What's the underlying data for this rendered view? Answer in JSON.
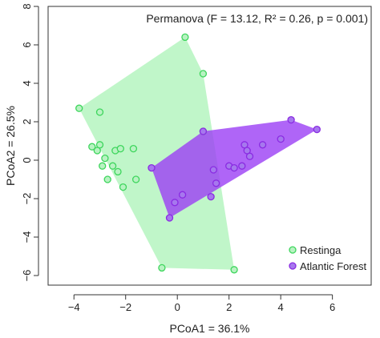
{
  "chart_data": {
    "type": "scatter",
    "title": "",
    "annotation": "Permanova (F = 13.12, R² = 0.26, p = 0.001)",
    "xlabel": "PCoA1 = 36.1%",
    "ylabel": "PCoA2 = 26.5%",
    "xlim": [
      -5.0,
      7.5
    ],
    "ylim": [
      -6.5,
      8.0
    ],
    "xticks": [
      -4,
      -2,
      0,
      2,
      4,
      6
    ],
    "yticks": [
      -6,
      -4,
      -2,
      0,
      2,
      4,
      6,
      8
    ],
    "grid": false,
    "legend_position": "bottom-right",
    "series": [
      {
        "name": "Restinga",
        "color": "#3dd65c",
        "hull_fill": "#bdf5c6",
        "points": [
          [
            -3.8,
            2.7
          ],
          [
            -3.0,
            2.5
          ],
          [
            -3.3,
            0.7
          ],
          [
            -3.0,
            0.8
          ],
          [
            -3.1,
            0.5
          ],
          [
            -2.8,
            0.1
          ],
          [
            -2.9,
            -0.3
          ],
          [
            -2.4,
            0.5
          ],
          [
            -2.2,
            0.6
          ],
          [
            -1.7,
            0.6
          ],
          [
            -2.5,
            -0.3
          ],
          [
            -2.3,
            -0.6
          ],
          [
            -2.7,
            -1.0
          ],
          [
            -2.1,
            -1.4
          ],
          [
            -1.6,
            -1.0
          ],
          [
            0.3,
            6.4
          ],
          [
            1.0,
            4.5
          ],
          [
            -0.6,
            -5.6
          ],
          [
            2.2,
            -5.7
          ],
          [
            1.0,
            1.5
          ]
        ],
        "hull": [
          [
            -3.8,
            2.7
          ],
          [
            0.3,
            6.4
          ],
          [
            1.0,
            4.5
          ],
          [
            2.2,
            -5.7
          ],
          [
            -0.6,
            -5.6
          ]
        ]
      },
      {
        "name": "Atlantic Forest",
        "color": "#8a2be2",
        "hull_fill": "#9b3ff5",
        "points": [
          [
            1.0,
            1.5
          ],
          [
            -1.0,
            -0.4
          ],
          [
            -0.3,
            -3.0
          ],
          [
            -0.1,
            -2.2
          ],
          [
            0.2,
            -1.8
          ],
          [
            1.3,
            -1.9
          ],
          [
            1.5,
            -1.2
          ],
          [
            1.4,
            -0.5
          ],
          [
            2.0,
            -0.3
          ],
          [
            2.2,
            -0.4
          ],
          [
            2.5,
            -0.3
          ],
          [
            2.8,
            0.2
          ],
          [
            2.6,
            0.8
          ],
          [
            2.7,
            0.5
          ],
          [
            3.3,
            0.8
          ],
          [
            4.0,
            1.1
          ],
          [
            4.4,
            2.1
          ],
          [
            5.4,
            1.6
          ]
        ],
        "hull": [
          [
            -1.0,
            -0.4
          ],
          [
            1.0,
            1.5
          ],
          [
            4.4,
            2.1
          ],
          [
            5.4,
            1.6
          ],
          [
            -0.3,
            -3.0
          ]
        ]
      }
    ]
  }
}
